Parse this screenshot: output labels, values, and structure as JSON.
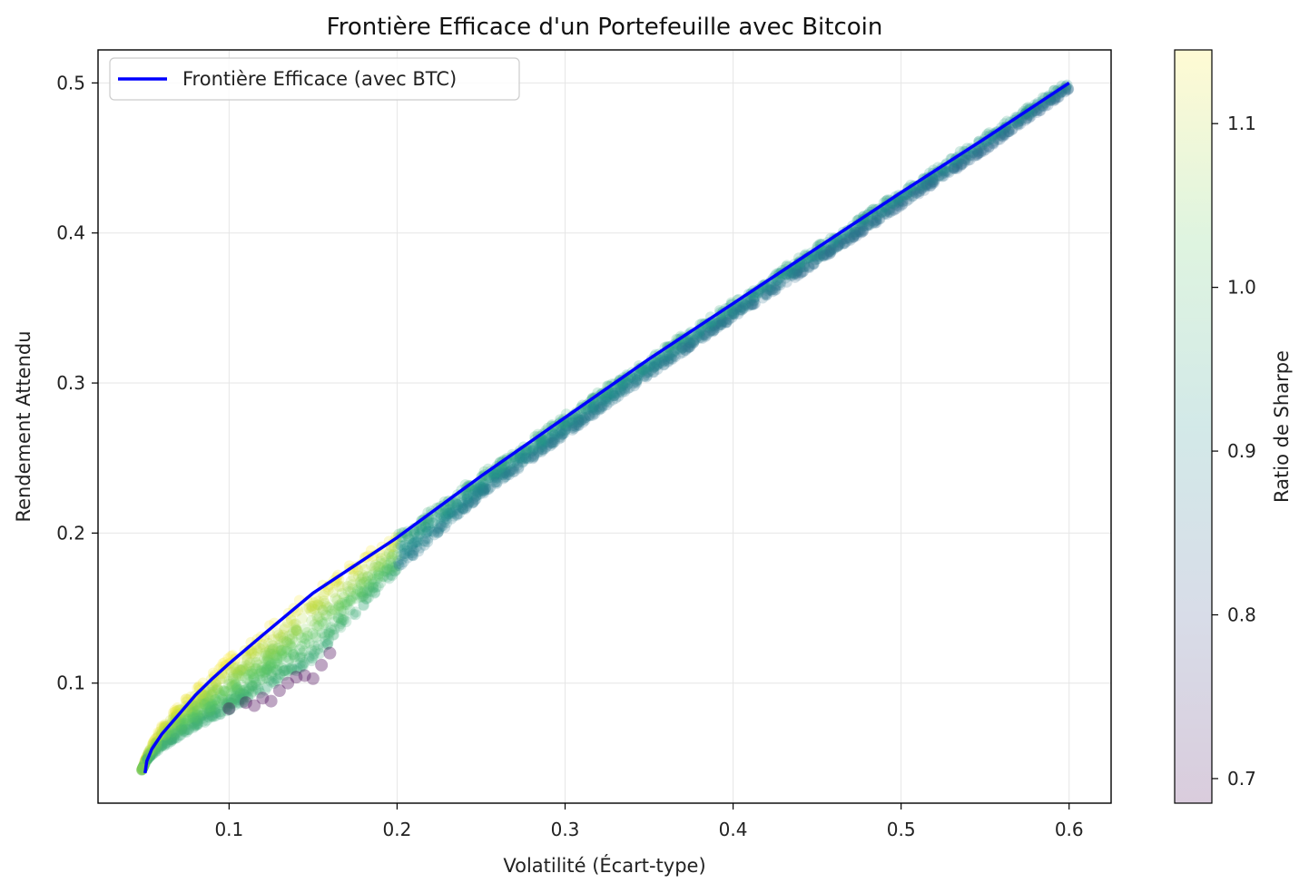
{
  "chart_data": {
    "type": "scatter",
    "title": "Frontière Efficace d'un Portefeuille avec Bitcoin",
    "xlabel": "Volatilité (Écart-type)",
    "ylabel": "Rendement Attendu",
    "xlim": [
      0.022,
      0.625
    ],
    "ylim": [
      0.02,
      0.522
    ],
    "xticks": [
      "0.1",
      "0.2",
      "0.3",
      "0.4",
      "0.5",
      "0.6"
    ],
    "xtick_values": [
      0.1,
      0.2,
      0.3,
      0.4,
      0.5,
      0.6
    ],
    "yticks": [
      "0.1",
      "0.2",
      "0.3",
      "0.4",
      "0.5"
    ],
    "ytick_values": [
      0.1,
      0.2,
      0.3,
      0.4,
      0.5
    ],
    "grid": true,
    "legend": {
      "position": "top-left",
      "entries": [
        "Frontière Efficace (avec BTC)"
      ]
    },
    "frontier": {
      "name": "Frontière Efficace (avec BTC)",
      "color": "#0000ff",
      "x": [
        0.05,
        0.051,
        0.054,
        0.06,
        0.07,
        0.08,
        0.09,
        0.1,
        0.12,
        0.15,
        0.2,
        0.25,
        0.3,
        0.35,
        0.4,
        0.45,
        0.5,
        0.55,
        0.6
      ],
      "y": [
        0.04,
        0.048,
        0.056,
        0.066,
        0.079,
        0.092,
        0.103,
        0.113,
        0.132,
        0.16,
        0.197,
        0.238,
        0.277,
        0.316,
        0.353,
        0.39,
        0.427,
        0.463,
        0.5
      ]
    },
    "scatter_cloud": {
      "description_axes": "Simulated portfolios colored by Sharpe ratio",
      "upper_x": [
        0.048,
        0.052,
        0.06,
        0.07,
        0.08,
        0.1,
        0.12,
        0.15,
        0.2,
        0.25,
        0.3,
        0.35,
        0.4,
        0.45,
        0.5,
        0.55,
        0.6
      ],
      "upper_y": [
        0.042,
        0.055,
        0.072,
        0.086,
        0.097,
        0.117,
        0.136,
        0.163,
        0.2,
        0.24,
        0.279,
        0.317,
        0.355,
        0.392,
        0.429,
        0.465,
        0.502
      ],
      "lower_y": [
        0.042,
        0.05,
        0.057,
        0.064,
        0.07,
        0.082,
        0.094,
        0.115,
        0.175,
        0.225,
        0.265,
        0.305,
        0.343,
        0.38,
        0.418,
        0.455,
        0.495
      ],
      "low_sharpe_points": [
        [
          0.1,
          0.083
        ],
        [
          0.11,
          0.087
        ],
        [
          0.115,
          0.085
        ],
        [
          0.12,
          0.09
        ],
        [
          0.125,
          0.088
        ],
        [
          0.13,
          0.095
        ],
        [
          0.135,
          0.1
        ],
        [
          0.14,
          0.104
        ],
        [
          0.145,
          0.105
        ],
        [
          0.15,
          0.103
        ],
        [
          0.155,
          0.112
        ],
        [
          0.16,
          0.12
        ]
      ]
    },
    "colorbar": {
      "label": "Ratio de Sharpe",
      "range": [
        0.685,
        1.145
      ],
      "ticks": [
        "0.7",
        "0.8",
        "0.9",
        "1.0",
        "1.1"
      ],
      "tick_values": [
        0.7,
        0.8,
        0.9,
        1.0,
        1.1
      ],
      "colormap": "viridis",
      "alpha": 0.2
    }
  }
}
